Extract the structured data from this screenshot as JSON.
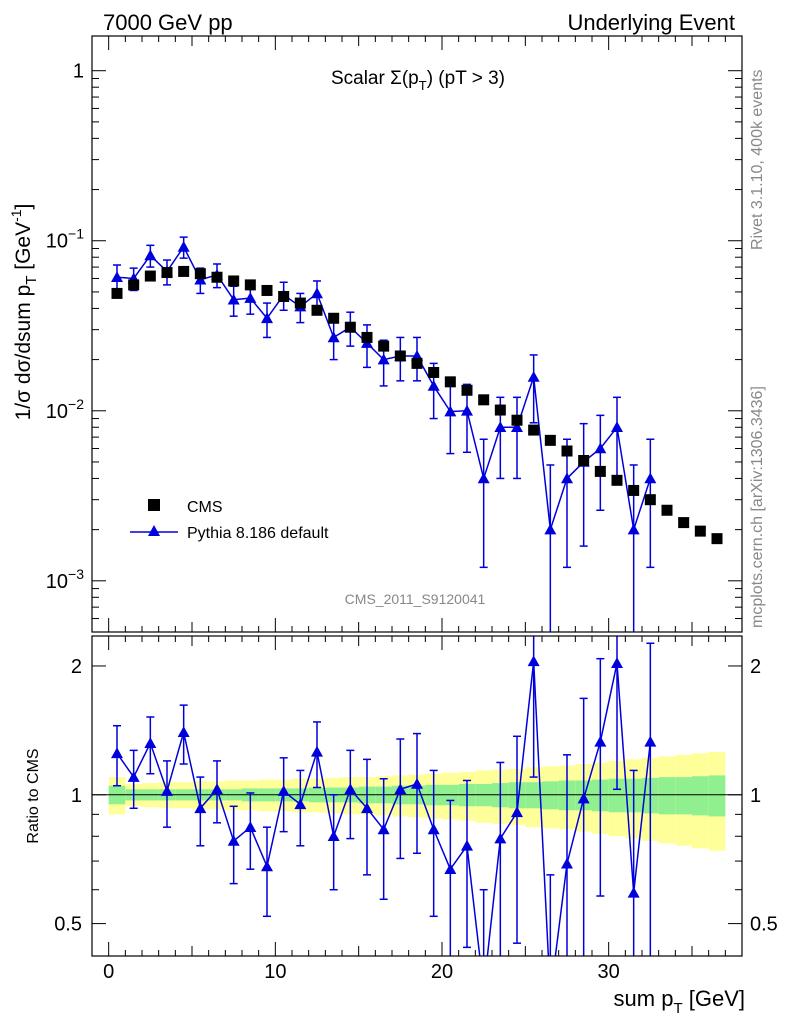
{
  "header": {
    "left": "7000 GeV pp",
    "right": "Underlying Event"
  },
  "side_texts": {
    "rivet": "Rivet 3.1.10,  400k events",
    "mcplots": "mcplots.cern.ch [arXiv:1306.3436]"
  },
  "watermark": "CMS_2011_S9120041",
  "colors": {
    "mc": "#0000dd",
    "band_inner": "#90f090",
    "band_outer": "#ffff99",
    "data": "#000000"
  },
  "chart_data": {
    "type": "scatter",
    "title": "Scalar Σ(p_T) (pT >  3)",
    "title_parts": {
      "pre": "Scalar Σ(p",
      "sub": "T",
      "post": ") (pT >  3)"
    },
    "xlabel": {
      "main": "sum p",
      "sub": "T",
      "unit": " [GeV]"
    },
    "ylabel": {
      "main": "1/σ dσ/dsum p",
      "sub": "T",
      "unit": " [GeV",
      "sup": "-1",
      "close": "]"
    },
    "ratio_ylabel": "Ratio to CMS",
    "xlim": [
      -1,
      38
    ],
    "ylim": [
      0.0005,
      1.6
    ],
    "ratio_ylim": [
      0.42,
      2.35
    ],
    "x_ticks": [
      0,
      10,
      20,
      30
    ],
    "y_ticks": [
      {
        "value": 1,
        "mant": "1",
        "exp": ""
      },
      {
        "value": 0.1,
        "mant": "10",
        "exp": "−1"
      },
      {
        "value": 0.01,
        "mant": "10",
        "exp": "−2"
      },
      {
        "value": 0.001,
        "mant": "10",
        "exp": "−3"
      }
    ],
    "ratio_ticks": [
      {
        "value": 0.5,
        "label": "0.5"
      },
      {
        "value": 1,
        "label": "1"
      },
      {
        "value": 2,
        "label": "2"
      }
    ],
    "legend": {
      "position": "bottom-left",
      "entries": [
        "CMS",
        "Pythia 8.186 default"
      ]
    },
    "series": [
      {
        "name": "CMS",
        "x": [
          0.5,
          1.5,
          2.5,
          3.5,
          4.5,
          5.5,
          6.5,
          7.5,
          8.5,
          9.5,
          10.5,
          11.5,
          12.5,
          13.5,
          14.5,
          15.5,
          16.5,
          17.5,
          18.5,
          19.5,
          20.5,
          21.5,
          22.5,
          23.5,
          24.5,
          25.5,
          26.5,
          27.5,
          28.5,
          29.5,
          30.5,
          31.5,
          32.5,
          33.5,
          34.5,
          35.5,
          36.5
        ],
        "values": [
          0.049,
          0.055,
          0.062,
          0.065,
          0.066,
          0.064,
          0.061,
          0.058,
          0.055,
          0.051,
          0.047,
          0.043,
          0.039,
          0.035,
          0.031,
          0.027,
          0.024,
          0.021,
          0.019,
          0.0168,
          0.0148,
          0.0132,
          0.0116,
          0.0101,
          0.0088,
          0.0077,
          0.0067,
          0.0058,
          0.0051,
          0.0044,
          0.0039,
          0.0034,
          0.003,
          0.0026,
          0.0022,
          0.00196,
          0.00177
        ]
      },
      {
        "name": "Pythia 8.186 default",
        "x": [
          0.5,
          1.5,
          2.5,
          3.5,
          4.5,
          5.5,
          6.5,
          7.5,
          8.5,
          9.5,
          10.5,
          11.5,
          12.5,
          13.5,
          14.5,
          15.5,
          16.5,
          17.5,
          18.5,
          19.5,
          20.5,
          21.5,
          22.5,
          23.5,
          24.5,
          25.5,
          26.5,
          27.5,
          28.5,
          29.5,
          30.5,
          31.5,
          32.5
        ],
        "values": [
          0.061,
          0.06,
          0.082,
          0.066,
          0.092,
          0.059,
          0.063,
          0.045,
          0.046,
          0.035,
          0.048,
          0.041,
          0.049,
          0.027,
          0.031,
          0.025,
          0.02,
          0.021,
          0.021,
          0.014,
          0.0099,
          0.01,
          0.004,
          0.008,
          0.008,
          0.0158,
          0.002,
          0.004,
          0.005,
          0.006,
          0.008,
          0.002,
          0.004
        ],
        "err_low": [
          0.011,
          0.009,
          0.012,
          0.011,
          0.013,
          0.01,
          0.01,
          0.009,
          0.009,
          0.008,
          0.009,
          0.008,
          0.009,
          0.007,
          0.007,
          0.007,
          0.006,
          0.006,
          0.006,
          0.005,
          0.0043,
          0.0043,
          0.0028,
          0.004,
          0.004,
          0.0073,
          0.0018,
          0.0028,
          0.0034,
          0.0034,
          0.004,
          0.0018,
          0.0028
        ],
        "err_high": [
          0.011,
          0.009,
          0.012,
          0.011,
          0.013,
          0.01,
          0.01,
          0.009,
          0.009,
          0.008,
          0.009,
          0.008,
          0.009,
          0.007,
          0.007,
          0.007,
          0.006,
          0.006,
          0.006,
          0.005,
          0.0043,
          0.0043,
          0.0028,
          0.004,
          0.004,
          0.0055,
          0.0028,
          0.0028,
          0.0034,
          0.0034,
          0.004,
          0.0028,
          0.0028
        ],
        "ratio": [
          1.25,
          1.1,
          1.32,
          1.02,
          1.4,
          0.93,
          1.03,
          0.78,
          0.84,
          0.68,
          1.02,
          0.95,
          1.26,
          0.8,
          1.03,
          0.93,
          0.83,
          1.03,
          1.06,
          0.83,
          0.67,
          0.76,
          0.35,
          0.79,
          0.91,
          2.05,
          0.3,
          0.69,
          0.98,
          1.33,
          2.03,
          0.59,
          1.33
        ],
        "ratio_err": [
          0.2,
          0.17,
          0.2,
          0.18,
          0.22,
          0.17,
          0.17,
          0.16,
          0.17,
          0.16,
          0.2,
          0.19,
          0.22,
          0.2,
          0.24,
          0.28,
          0.26,
          0.32,
          0.33,
          0.31,
          0.3,
          0.32,
          0.25,
          0.4,
          0.46,
          0.95,
          0.35,
          0.55,
          0.7,
          0.75,
          1.0,
          0.55,
          0.93
        ]
      }
    ],
    "uncertainty_band": {
      "x_edges": [
        0,
        1,
        2,
        3,
        4,
        5,
        6,
        7,
        8,
        9,
        10,
        11,
        12,
        13,
        14,
        15,
        16,
        17,
        18,
        19,
        20,
        21,
        22,
        23,
        24,
        25,
        26,
        27,
        28,
        29,
        30,
        31,
        32,
        33,
        34,
        35,
        36,
        37
      ],
      "inner": [
        0.05,
        0.03,
        0.03,
        0.03,
        0.03,
        0.03,
        0.03,
        0.03,
        0.035,
        0.035,
        0.035,
        0.035,
        0.04,
        0.04,
        0.04,
        0.045,
        0.045,
        0.05,
        0.05,
        0.055,
        0.055,
        0.06,
        0.06,
        0.065,
        0.07,
        0.07,
        0.075,
        0.08,
        0.08,
        0.085,
        0.09,
        0.09,
        0.095,
        0.1,
        0.1,
        0.105,
        0.11
      ],
      "outer": [
        0.1,
        0.06,
        0.065,
        0.07,
        0.07,
        0.075,
        0.075,
        0.08,
        0.08,
        0.085,
        0.085,
        0.09,
        0.09,
        0.095,
        0.1,
        0.1,
        0.105,
        0.11,
        0.115,
        0.12,
        0.125,
        0.13,
        0.14,
        0.145,
        0.15,
        0.16,
        0.165,
        0.17,
        0.18,
        0.19,
        0.2,
        0.21,
        0.22,
        0.23,
        0.24,
        0.25,
        0.26
      ]
    }
  }
}
